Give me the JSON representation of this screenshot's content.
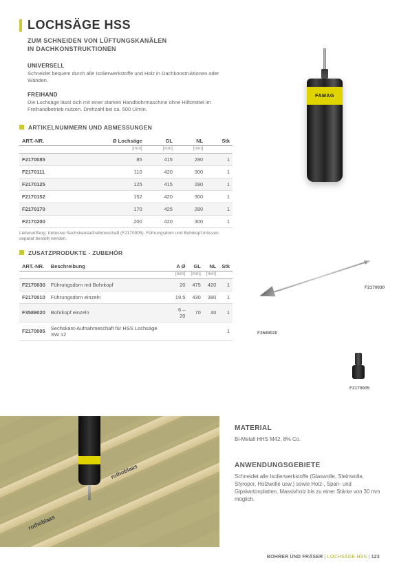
{
  "header": {
    "title": "LOCHSÄGE HSS",
    "subtitle_l1": "ZUM SCHNEIDEN VON LÜFTUNGSKANÄLEN",
    "subtitle_l2": "IN DACHKONSTRUKTIONEN",
    "brand_on_tool": "FAMAG"
  },
  "features": [
    {
      "heading": "UNIVERSELL",
      "text": "Schneidet bequem durch alle Isolierwerkstoffe und Holz in Dachkonstruktionen oder Wänden."
    },
    {
      "heading": "FREIHAND",
      "text": "Die Lochsäge lässt sich mit einer starken Handbohrmaschine ohne Hilfsmittel im Freihandbetrieb nutzen. Drehzahl bei ca. 500 U/min."
    }
  ],
  "section1_title": "ARTIKELNUMMERN UND ABMESSUNGEN",
  "table1": {
    "columns": [
      "ART.-NR.",
      "Ø Lochsäge",
      "GL",
      "NL",
      "Stk"
    ],
    "units": [
      "",
      "[mm]",
      "[mm]",
      "[mm]",
      ""
    ],
    "rows": [
      [
        "F2170085",
        "85",
        "415",
        "280",
        "1"
      ],
      [
        "F2170111",
        "110",
        "420",
        "300",
        "1"
      ],
      [
        "F2170125",
        "125",
        "415",
        "280",
        "1"
      ],
      [
        "F2170152",
        "152",
        "420",
        "300",
        "1"
      ],
      [
        "F2170170",
        "170",
        "425",
        "280",
        "1"
      ],
      [
        "F2170200",
        "200",
        "420",
        "300",
        "1"
      ]
    ],
    "note": "Lieferumfang: Inklusive Sechskantaufnahmeschaft (F2170005). Führungsdorn und Bohrkopf müssen separat bestellt werden."
  },
  "section2_title": "ZUSATZPRODUKTE - ZUBEHÖR",
  "table2": {
    "columns": [
      "ART.-NR.",
      "Beschreibung",
      "A Ø",
      "GL",
      "NL",
      "Stk"
    ],
    "units": [
      "",
      "",
      "[mm]",
      "[mm]",
      "[mm]",
      ""
    ],
    "rows": [
      [
        "F2170030",
        "Führungsdorn mit Bohrkopf",
        "20",
        "475",
        "420",
        "1"
      ],
      [
        "F2170010",
        "Führungsdorn einzeln",
        "19.5",
        "430",
        "380",
        "1"
      ],
      [
        "F3589020",
        "Bohrkopf einzeln",
        "6 – 20",
        "70",
        "40",
        "1"
      ],
      [
        "F2170005",
        "Sechskant-Aufnahmeschaft für HSS Lochsäge SW 12",
        "",
        "",
        "",
        "1"
      ]
    ]
  },
  "accessory_labels": {
    "top": "F2170030",
    "mid": "F3589020",
    "bot": "F2170005"
  },
  "material": {
    "heading": "MATERIAL",
    "text": "Bi-Metall HHS M42, 8% Co."
  },
  "application": {
    "heading": "ANWENDUNGSGEBIETE",
    "text": "Schneidet alle Isolierwerkstoffe (Glaswolle, Steinwolle, Styropor, Holzwolle usw.) sowie Holz-, Span- und Gipskartonplatten. Massivholz bis zu einer Stärke von 30 mm möglich."
  },
  "photo_brand": "rothoblaas",
  "footer": {
    "cat": "BOHRER UND FRÄSER",
    "sep": " | ",
    "prod": "LOCHSÄGE HSS",
    "page": "123"
  },
  "colors": {
    "accent": "#c9c93a",
    "tool_band": "#e0d400"
  }
}
